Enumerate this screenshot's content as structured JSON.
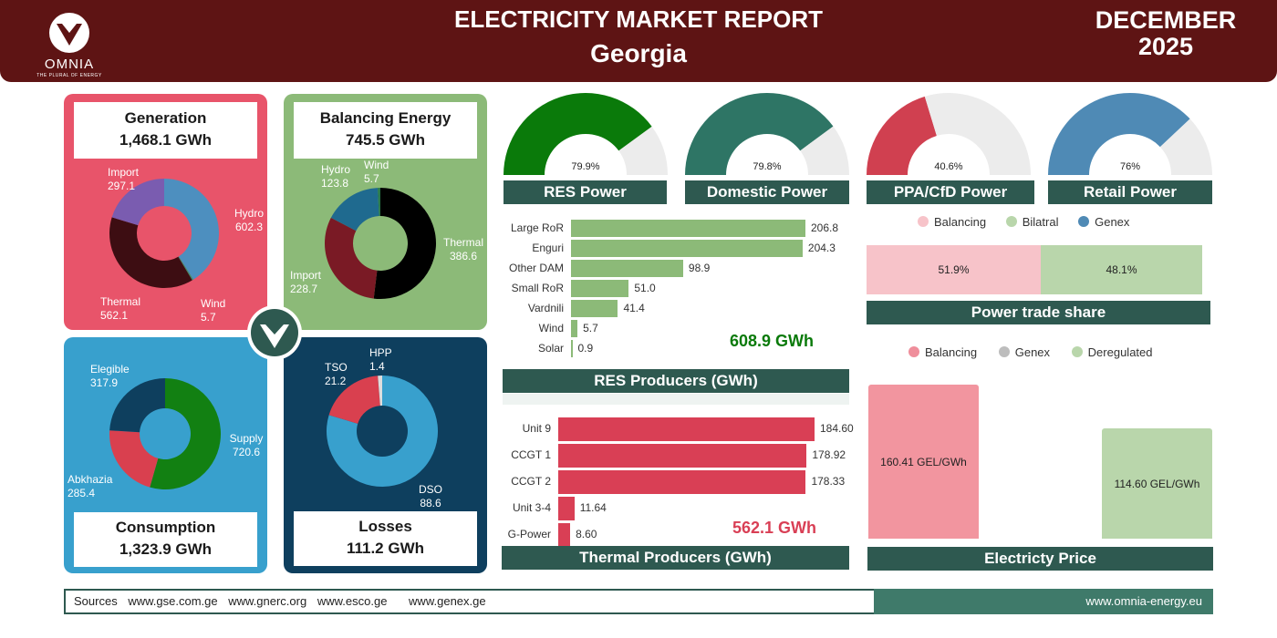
{
  "header": {
    "title": "ELECTRICITY MARKET REPORT",
    "country": "Georgia",
    "month": "DECEMBER",
    "year": "2025",
    "logo_text": "OMNIA",
    "logo_tagline": "THE PLURAL OF ENERGY"
  },
  "colors": {
    "header_bg": "#5e1414",
    "generation_panel": "#e8546a",
    "balancing_panel": "#8cba78",
    "consumption_panel": "#38a0cd",
    "losses_panel": "#0e3f5e",
    "teal_title": "#2e5950",
    "res_bar": "#8cba78",
    "thermal_bar": "#d93f55"
  },
  "generation": {
    "title": "Generation",
    "total": "1,468.1 GWh",
    "slices": [
      {
        "name": "Hydro",
        "value": 602.3,
        "value_label": "602.3",
        "color": "#4d8fbf"
      },
      {
        "name": "Wind",
        "value": 5.7,
        "value_label": "5.7",
        "color": "#3a8f6a"
      },
      {
        "name": "Thermal",
        "value": 562.1,
        "value_label": "562.1",
        "color": "#3d0d12"
      },
      {
        "name": "Import",
        "value": 297.1,
        "value_label": "297.1",
        "color": "#7a5cb0"
      }
    ]
  },
  "balancing": {
    "title": "Balancing Energy",
    "total": "745.5 GWh",
    "slices": [
      {
        "name": "Thermal",
        "value": 386.6,
        "value_label": "386.6",
        "color": "#000000"
      },
      {
        "name": "Import",
        "value": 228.7,
        "value_label": "228.7",
        "color": "#7a1a25"
      },
      {
        "name": "Hydro",
        "value": 123.8,
        "value_label": "123.8",
        "color": "#1f6a8f"
      },
      {
        "name": "Wind",
        "value": 5.7,
        "value_label": "5.7",
        "color": "#2a7a4a"
      }
    ]
  },
  "consumption": {
    "title": "Consumption",
    "total": "1,323.9 GWh",
    "slices": [
      {
        "name": "Supply",
        "value": 720.6,
        "value_label": "720.6",
        "color": "#128012"
      },
      {
        "name": "Abkhazia",
        "value": 285.4,
        "value_label": "285.4",
        "color": "#d9404f"
      },
      {
        "name": "Elegible",
        "value": 317.9,
        "value_label": "317.9",
        "color": "#0e3f5e"
      }
    ]
  },
  "losses": {
    "title": "Losses",
    "total": "111.2 GWh",
    "slices": [
      {
        "name": "DSO",
        "value": 88.6,
        "value_label": "88.6",
        "color": "#38a0cd"
      },
      {
        "name": "TSO",
        "value": 21.2,
        "value_label": "21.2",
        "color": "#d9404f"
      },
      {
        "name": "HPP",
        "value": 1.4,
        "value_label": "1.4",
        "color": "#dddddd"
      }
    ]
  },
  "gauges": [
    {
      "title": "RES Power",
      "percent": 79.9,
      "label": "79.9%",
      "color": "#0a7a0a"
    },
    {
      "title": "Domestic Power",
      "percent": 79.8,
      "label": "79.8%",
      "color": "#2e7565"
    },
    {
      "title": "PPA/CfD Power",
      "percent": 40.6,
      "label": "40.6%",
      "color": "#d04050"
    },
    {
      "title": "Retail Power",
      "percent": 76,
      "label": "76%",
      "color": "#4f8ab5"
    }
  ],
  "res_producers": {
    "title": "RES Producers (GWh)",
    "total": "608.9 GWh",
    "max": 206.8,
    "rows": [
      {
        "name": "Large RoR",
        "value": 206.8,
        "label": "206.8"
      },
      {
        "name": "Enguri",
        "value": 204.3,
        "label": "204.3"
      },
      {
        "name": "Other DAM",
        "value": 98.9,
        "label": "98.9"
      },
      {
        "name": "Small RoR",
        "value": 51.0,
        "label": "51.0"
      },
      {
        "name": "Vardnili",
        "value": 41.4,
        "label": "41.4"
      },
      {
        "name": "Wind",
        "value": 5.7,
        "label": "5.7"
      },
      {
        "name": "Solar",
        "value": 0.9,
        "label": "0.9"
      }
    ]
  },
  "thermal_producers": {
    "title": "Thermal Producers (GWh)",
    "total": "562.1 GWh",
    "max": 184.6,
    "rows": [
      {
        "name": "Unit 9",
        "value": 184.6,
        "label": "184.60"
      },
      {
        "name": "CCGT 1",
        "value": 178.92,
        "label": "178.92"
      },
      {
        "name": "CCGT 2",
        "value": 178.33,
        "label": "178.33"
      },
      {
        "name": "Unit 3-4",
        "value": 11.64,
        "label": "11.64"
      },
      {
        "name": "G-Power",
        "value": 8.6,
        "label": "8.60"
      }
    ]
  },
  "trade_share": {
    "title": "Power trade share",
    "legend": [
      {
        "name": "Balancing",
        "color": "#f7c3c9"
      },
      {
        "name": "Bilatral",
        "color": "#b9d6ab"
      },
      {
        "name": "Genex",
        "color": "#4f8ab5"
      }
    ],
    "segments": [
      {
        "name": "Balancing",
        "value": 51.9,
        "label": "51.9%",
        "color": "#f7c3c9"
      },
      {
        "name": "Bilatral",
        "value": 48.1,
        "label": "48.1%",
        "color": "#b9d6ab"
      }
    ]
  },
  "price": {
    "title": "Electricty Price",
    "legend": [
      {
        "name": "Balancing",
        "color": "#ef8e9b"
      },
      {
        "name": "Genex",
        "color": "#bdbdbd"
      },
      {
        "name": "Deregulated",
        "color": "#b9d6ab"
      }
    ],
    "bars": [
      {
        "name": "Balancing",
        "value": 160.41,
        "label": "160.41 GEL/GWh",
        "color": "#f2959f"
      },
      {
        "name": "Deregulated",
        "value": 114.6,
        "label": "114.60 GEL/GWh",
        "color": "#b9d6ab"
      }
    ],
    "max": 160.41
  },
  "chart_data": [
    {
      "type": "pie",
      "title": "Generation",
      "categories": [
        "Hydro",
        "Wind",
        "Thermal",
        "Import"
      ],
      "values": [
        602.3,
        5.7,
        562.1,
        297.1
      ],
      "unit": "GWh"
    },
    {
      "type": "pie",
      "title": "Balancing Energy",
      "categories": [
        "Thermal",
        "Import",
        "Hydro",
        "Wind"
      ],
      "values": [
        386.6,
        228.7,
        123.8,
        5.7
      ],
      "unit": "GWh"
    },
    {
      "type": "pie",
      "title": "Consumption",
      "categories": [
        "Supply",
        "Abkhazia",
        "Elegible"
      ],
      "values": [
        720.6,
        285.4,
        317.9
      ],
      "unit": "GWh"
    },
    {
      "type": "pie",
      "title": "Losses",
      "categories": [
        "DSO",
        "TSO",
        "HPP"
      ],
      "values": [
        88.6,
        21.2,
        1.4
      ],
      "unit": "GWh"
    },
    {
      "type": "bar",
      "title": "RES Producers (GWh)",
      "categories": [
        "Large RoR",
        "Enguri",
        "Other DAM",
        "Small RoR",
        "Vardnili",
        "Wind",
        "Solar"
      ],
      "values": [
        206.8,
        204.3,
        98.9,
        51.0,
        41.4,
        5.7,
        0.9
      ]
    },
    {
      "type": "bar",
      "title": "Thermal Producers (GWh)",
      "categories": [
        "Unit 9",
        "CCGT 1",
        "CCGT 2",
        "Unit 3-4",
        "G-Power"
      ],
      "values": [
        184.6,
        178.92,
        178.33,
        11.64,
        8.6
      ]
    },
    {
      "type": "bar",
      "title": "Electricty Price",
      "categories": [
        "Balancing",
        "Deregulated"
      ],
      "values": [
        160.41,
        114.6
      ],
      "unit": "GEL/GWh"
    },
    {
      "type": "bar",
      "title": "Power trade share",
      "categories": [
        "Balancing",
        "Bilatral"
      ],
      "values": [
        51.9,
        48.1
      ],
      "unit": "%"
    }
  ],
  "footer": {
    "sources_label": "Sources",
    "sources": [
      "www.gse.com.ge",
      "www.gnerc.org",
      "www.esco.ge",
      "www.genex.ge"
    ],
    "website": "www.omnia-energy.eu"
  }
}
